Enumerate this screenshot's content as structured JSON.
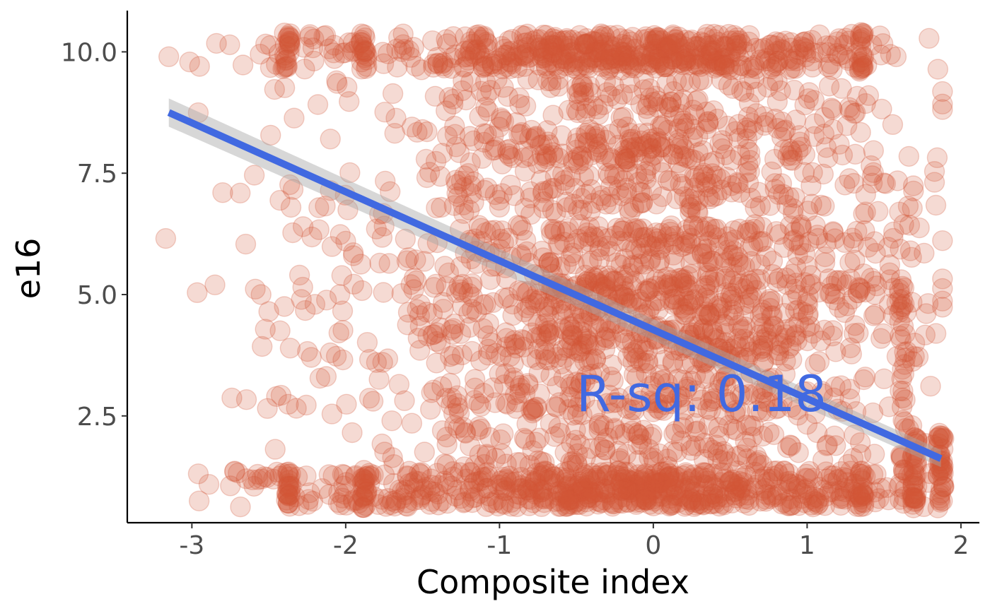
{
  "chart_data": {
    "type": "scatter",
    "xlabel": "Composite index",
    "ylabel": "e16",
    "xlim": [
      -3.42,
      2.12
    ],
    "ylim": [
      0.3,
      10.85
    ],
    "x_ticks": [
      -3,
      -2,
      -1,
      0,
      1,
      2
    ],
    "x_tick_labels": [
      "-3",
      "-2",
      "-1",
      "0",
      "1",
      "2"
    ],
    "y_ticks": [
      2.5,
      5.0,
      7.5,
      10.0
    ],
    "y_tick_labels": [
      "2.5",
      "5.0",
      "7.5",
      "10.0"
    ],
    "grid": false,
    "legend": "none",
    "point_color": "#d35637",
    "point_opacity": 0.22,
    "point_count_approx": 3000,
    "points_sample": [
      {
        "x": -3.15,
        "y": 9.9
      },
      {
        "x": -2.95,
        "y": 9.7
      },
      {
        "x": -2.8,
        "y": 7.1
      },
      {
        "x": -2.85,
        "y": 5.2
      },
      {
        "x": -2.55,
        "y": 5.0
      },
      {
        "x": -2.5,
        "y": 4.65
      },
      {
        "x": -2.45,
        "y": 2.9
      },
      {
        "x": -2.38,
        "y": 0.9
      },
      {
        "x": -2.3,
        "y": 5.4
      },
      {
        "x": -2.2,
        "y": 4.8
      },
      {
        "x": -2.1,
        "y": 3.8
      },
      {
        "x": -2.0,
        "y": 6.1
      },
      {
        "x": -1.95,
        "y": 5.8
      },
      {
        "x": -1.88,
        "y": 1.0
      },
      {
        "x": -1.8,
        "y": 3.6
      },
      {
        "x": -1.7,
        "y": 2.4
      },
      {
        "x": -1.5,
        "y": 8.4
      },
      {
        "x": -1.3,
        "y": 4.3
      },
      {
        "x": -1.0,
        "y": 6.8
      },
      {
        "x": -0.8,
        "y": 9.9
      },
      {
        "x": -0.5,
        "y": 8.8
      },
      {
        "x": -0.3,
        "y": 6.0
      },
      {
        "x": -0.2,
        "y": 5.0
      },
      {
        "x": 0.0,
        "y": 1.0
      },
      {
        "x": 0.2,
        "y": 3.9
      },
      {
        "x": 0.4,
        "y": 4.1
      },
      {
        "x": 0.6,
        "y": 10.0
      },
      {
        "x": 0.8,
        "y": 6.3
      },
      {
        "x": 1.0,
        "y": 3.0
      },
      {
        "x": 1.2,
        "y": 1.2
      },
      {
        "x": 1.35,
        "y": 10.1
      },
      {
        "x": 1.4,
        "y": 9.1
      },
      {
        "x": 1.5,
        "y": 7.3
      },
      {
        "x": 1.6,
        "y": 6.7
      },
      {
        "x": 1.62,
        "y": 4.9
      },
      {
        "x": 1.7,
        "y": 4.0
      },
      {
        "x": 1.82,
        "y": 1.9
      },
      {
        "x": 1.87,
        "y": 1.0
      }
    ],
    "regression": {
      "x_range": [
        -3.15,
        1.87
      ],
      "y_at_start": 8.75,
      "y_at_end": 1.62,
      "line_color": "#4169e1",
      "band_color": "#a6a6a6"
    },
    "annotations": [
      {
        "text": "R-sq: 0.18",
        "x": -0.5,
        "y": 2.6,
        "color": "#4169e1"
      }
    ]
  }
}
